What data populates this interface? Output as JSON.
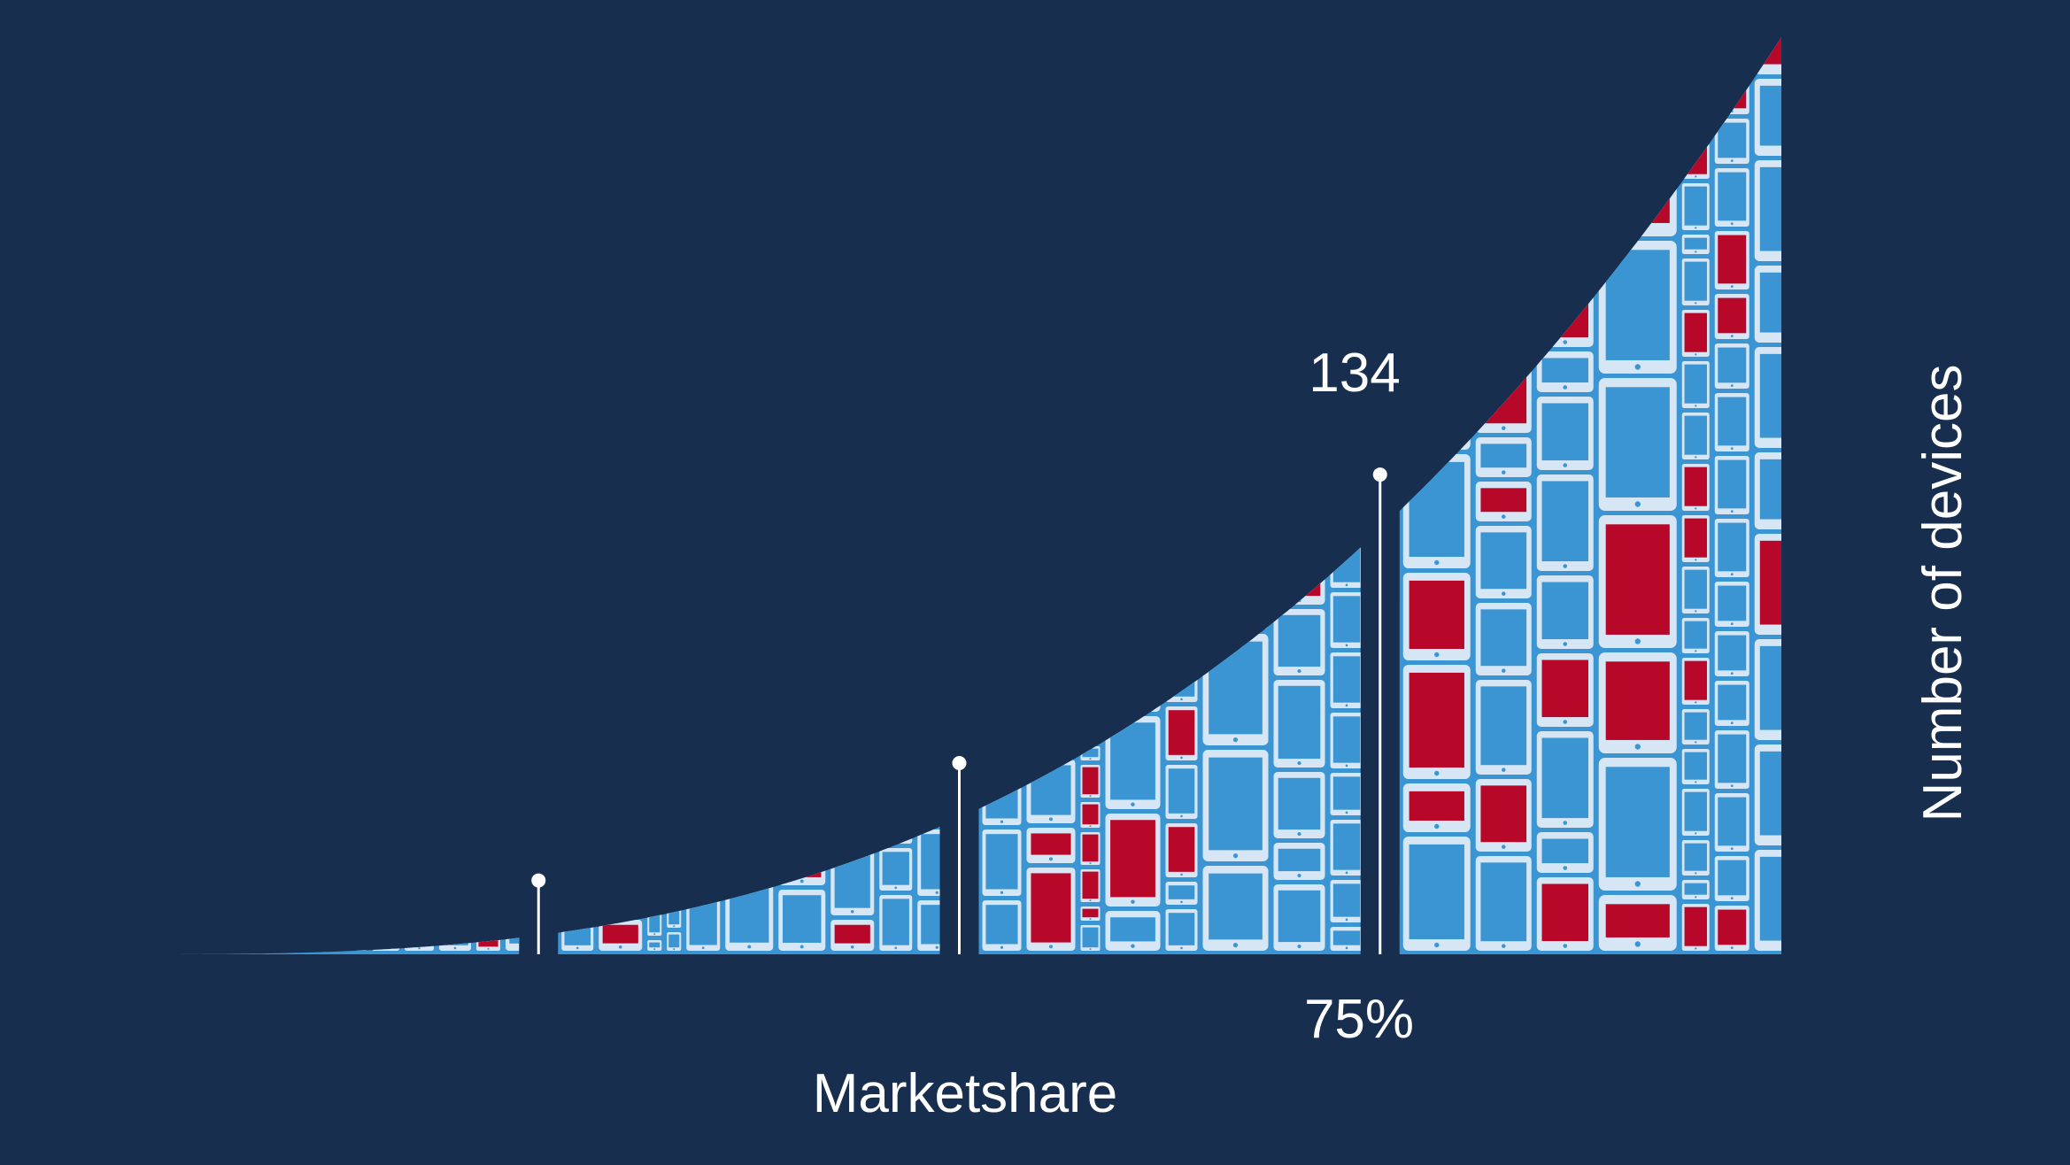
{
  "chart_data": {
    "type": "area",
    "title": "",
    "xlabel": "Marketshare",
    "ylabel": "Number of devices",
    "grid": false,
    "legend": "none",
    "segments": 4,
    "annotations": [
      {
        "label": "134",
        "x_label": "75%",
        "marker": 3
      }
    ],
    "colors": {
      "background": "#172e4f",
      "area_fill": "#3b95d3",
      "device_outline": "#d6e6f4",
      "device_highlight": "#b8082a",
      "text": "#ffffff"
    },
    "icons": [
      "phone-icon",
      "tablet-icon"
    ]
  }
}
